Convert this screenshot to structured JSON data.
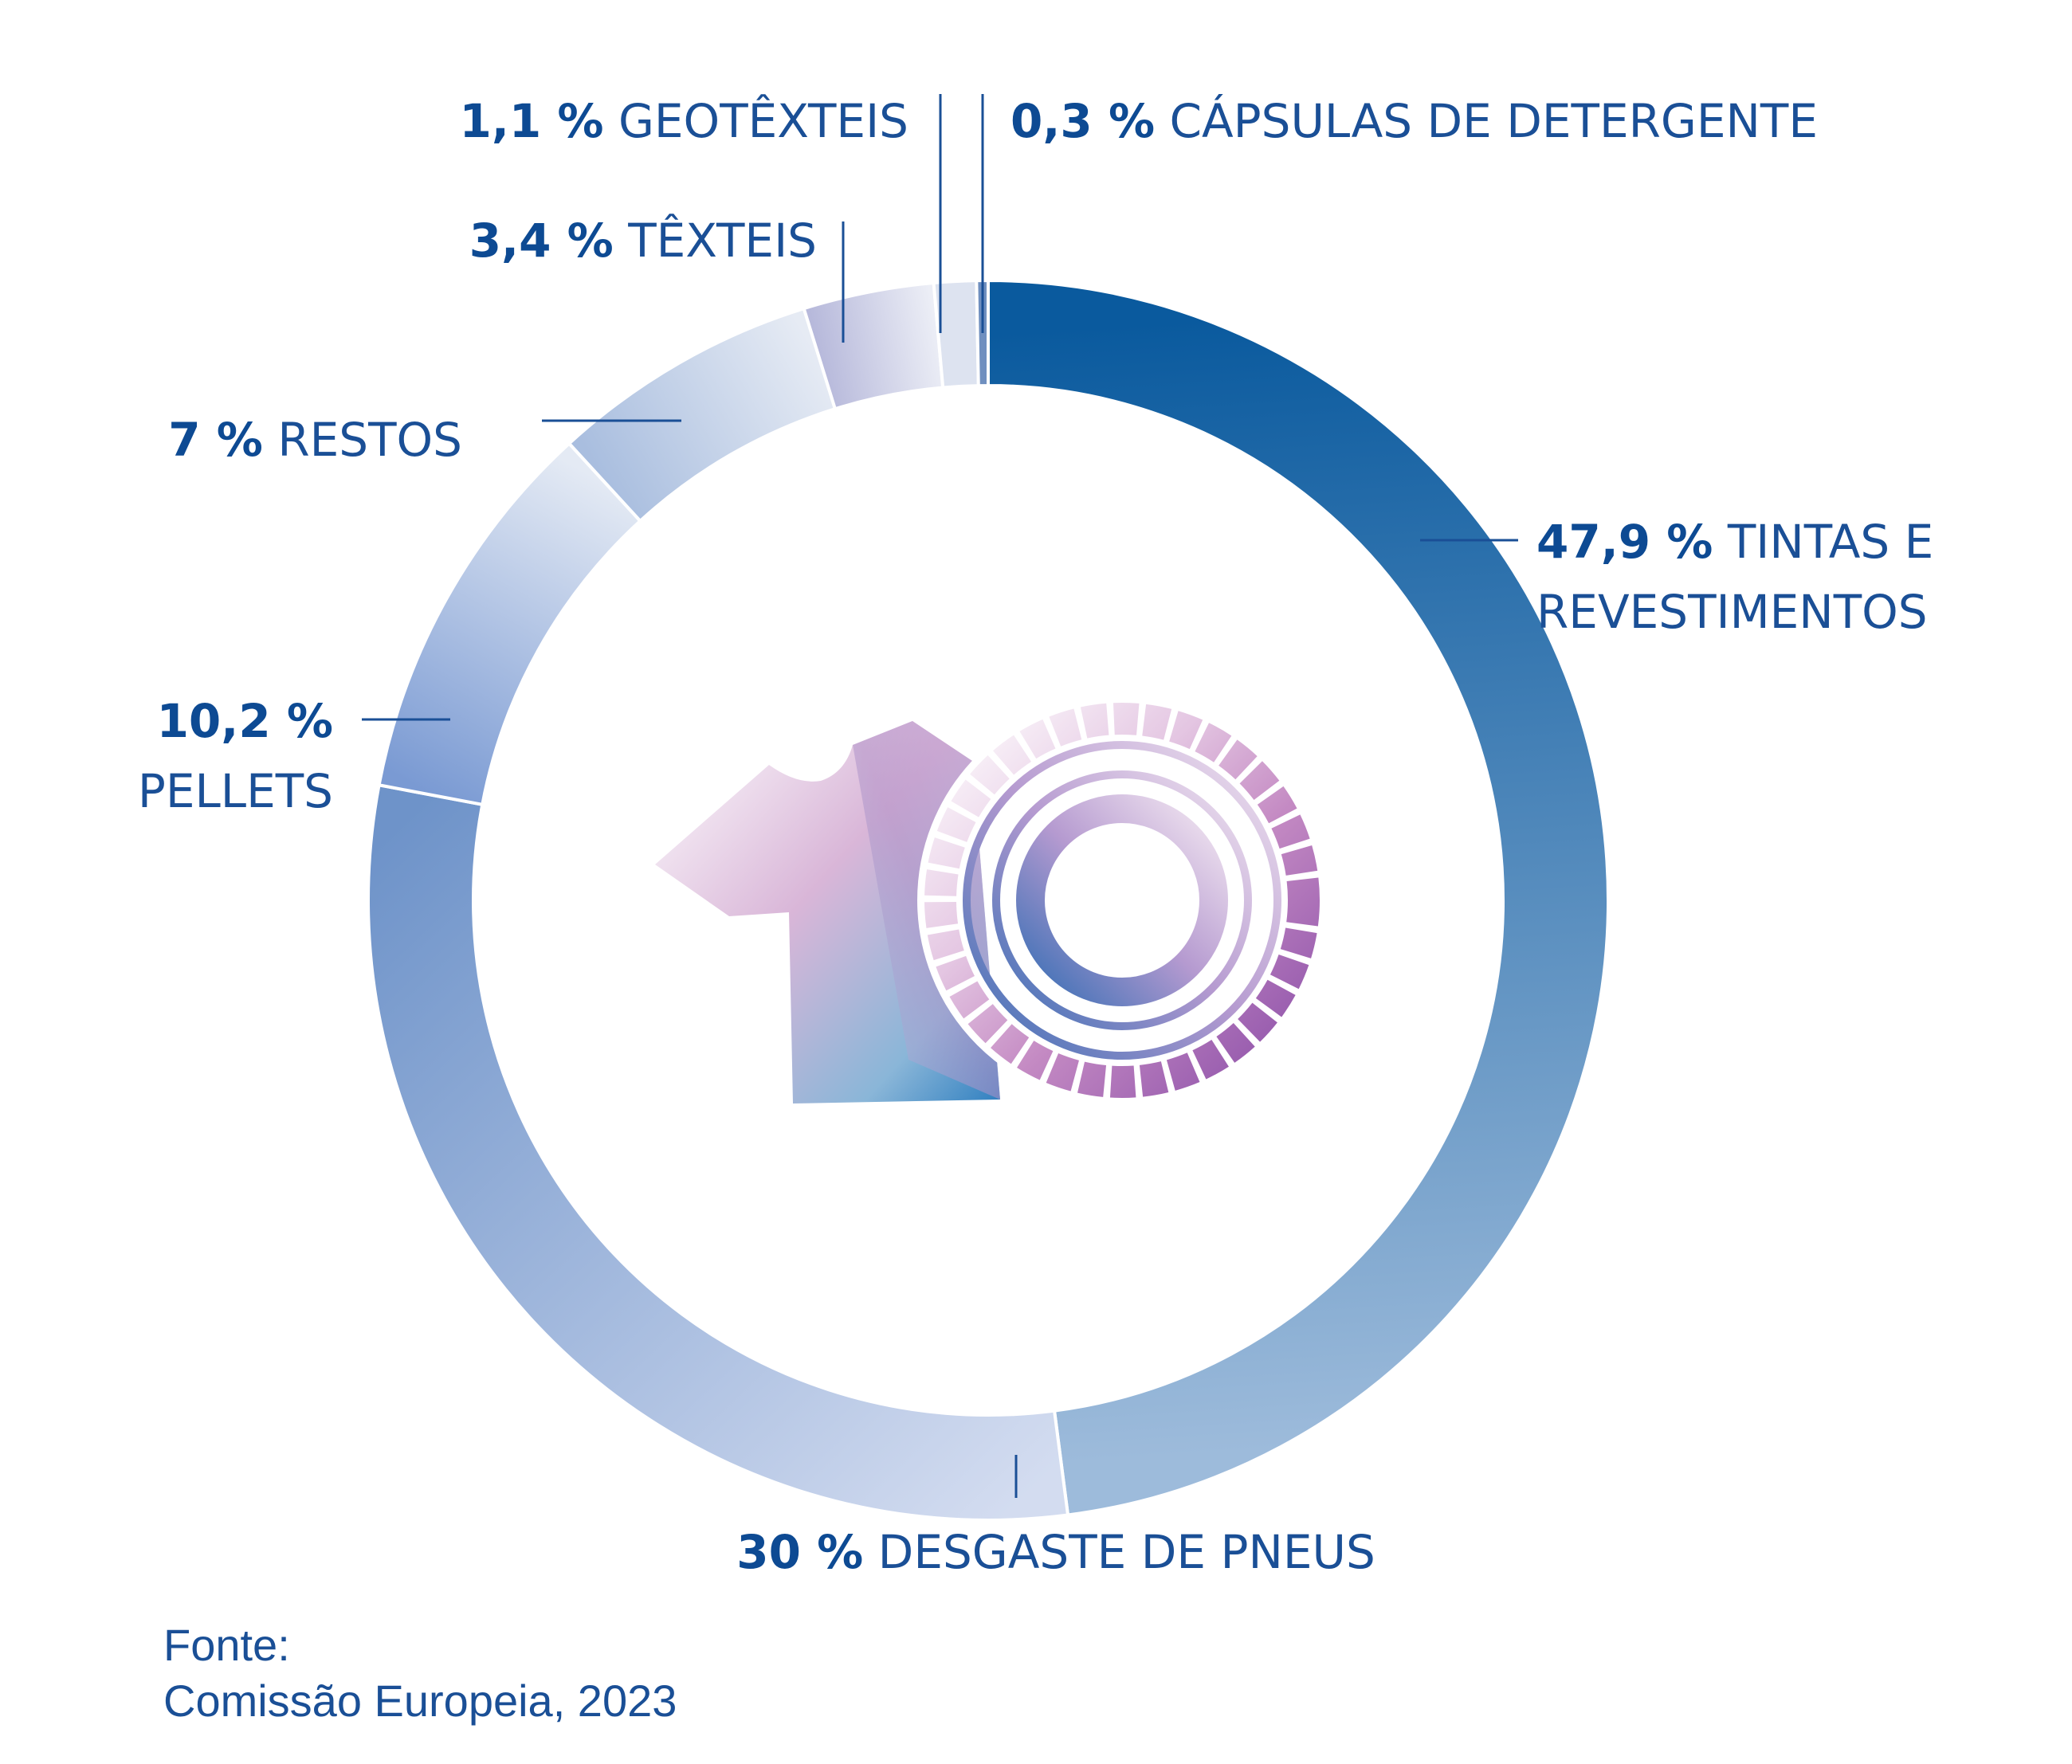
{
  "chart_data": {
    "type": "pie",
    "title": "",
    "slices": [
      {
        "value": 47.9,
        "pct_label": "47,9 %",
        "name_lines": [
          "TINTAS E",
          "REVESTIMENTOS"
        ],
        "color_start": "#0a5a9e",
        "color_end": "#9dbbdb"
      },
      {
        "value": 30,
        "pct_label": "30 %",
        "name_lines": [
          "DESGASTE DE PNEUS"
        ],
        "color_start": "#d3dcf0",
        "color_end": "#6e93c9"
      },
      {
        "value": 10.2,
        "pct_label": "10,2 %",
        "name_lines": [
          "PELLETS"
        ],
        "color_start": "#7a9ad3",
        "color_end": "#e4eaf4"
      },
      {
        "value": 7,
        "pct_label": "7 %",
        "name_lines": [
          "RESTOS"
        ],
        "color_start": "#a9bedf",
        "color_end": "#e6ebf4"
      },
      {
        "value": 3.4,
        "pct_label": "3,4 %",
        "name_lines": [
          "TÊXTEIS"
        ],
        "color_start": "#b7b9db",
        "color_end": "#eceef6"
      },
      {
        "value": 1.1,
        "pct_label": "1,1 %",
        "name_lines": [
          "GEOTÊXTEIS"
        ],
        "color_start": "#dde3f0",
        "color_end": "#dde3f0"
      },
      {
        "value": 0.3,
        "pct_label": "0,3 %",
        "name_lines": [
          "CÁPSULAS DE DETERGENTE"
        ],
        "color_start": "#6f8fbf",
        "color_end": "#6f8fbf"
      }
    ]
  },
  "source": {
    "line1": "Fonte:",
    "line2": "Comissão Europeia, 2023"
  }
}
